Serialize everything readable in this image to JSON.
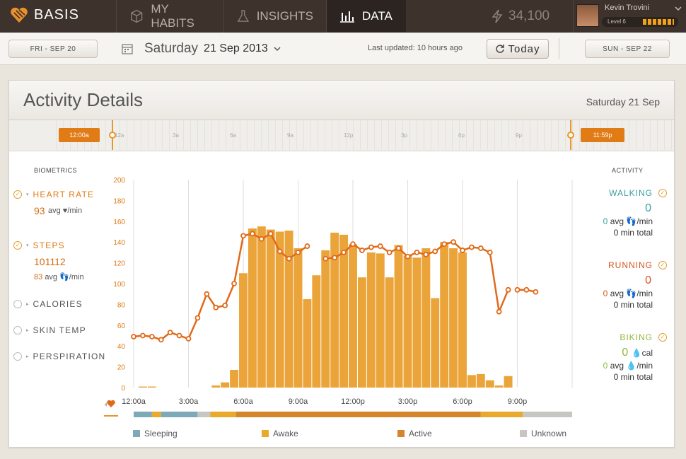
{
  "nav": {
    "brand": "BASIS",
    "tabs": [
      {
        "label": "MY HABITS",
        "icon": "cube-icon"
      },
      {
        "label": "INSIGHTS",
        "icon": "flask-icon"
      },
      {
        "label": "DATA",
        "icon": "bar-chart-icon",
        "active": true
      }
    ],
    "points": "34,100",
    "user_name": "Kevin Trovini",
    "level": "Level 6"
  },
  "subbar": {
    "prev_label": "FRI - SEP 20",
    "day_name": "Saturday",
    "date": "21 Sep 2013",
    "last_updated": "Last updated: 10 hours ago",
    "today_label": "Today",
    "next_label": "SUN - SEP 22"
  },
  "card": {
    "title": "Activity Details",
    "date_label": "Saturday 21 Sep",
    "timeline_start": "12:00a",
    "timeline_end": "11:59p",
    "timeline_ticks": [
      "12a",
      "3a",
      "6a",
      "9a",
      "12p",
      "3p",
      "6p",
      "9p"
    ]
  },
  "biometrics": {
    "heading": "BIOMETRICS",
    "heart_rate": {
      "label": "HEART RATE",
      "value": "93",
      "unit": "avg ♥/min"
    },
    "steps": {
      "label": "STEPS",
      "value": "101112",
      "avg_value": "83",
      "unit": "avg 👣/min"
    },
    "others": [
      "CALORIES",
      "SKIN TEMP",
      "PERSPIRATION"
    ]
  },
  "activity": {
    "heading": "ACTIVITY",
    "walking": {
      "label": "WALKING",
      "value": "0",
      "avg": "0",
      "avg_unit": "avg 👣/min",
      "total": "0 min total",
      "color": "#3a9ea3"
    },
    "running": {
      "label": "RUNNING",
      "value": "0",
      "avg": "0",
      "avg_unit": "avg 👣/min",
      "total": "0 min total",
      "color": "#d4551c"
    },
    "biking": {
      "label": "BIKING",
      "value": "0",
      "value_unit": "💧cal",
      "avg": "0",
      "avg_unit": "avg 💧/min",
      "total": "0 min total",
      "color": "#8fb83a"
    }
  },
  "legend": {
    "sleeping": {
      "label": "Sleeping",
      "color": "#7ea9b8"
    },
    "awake": {
      "label": "Awake",
      "color": "#e8a92c"
    },
    "active": {
      "label": "Active",
      "color": "#d4862c"
    },
    "unknown": {
      "label": "Unknown",
      "color": "#c8c6c2"
    }
  },
  "chart_data": {
    "type": "bar",
    "ylim": [
      0,
      200
    ],
    "yticks": [
      0,
      20,
      40,
      60,
      80,
      100,
      120,
      140,
      160,
      180,
      200
    ],
    "xtick_labels": [
      "12:00a",
      "3:00a",
      "6:00a",
      "9:00a",
      "12:00p",
      "3:00p",
      "6:00p",
      "9:00p"
    ],
    "xlim_hours": [
      0,
      24
    ],
    "series": [
      {
        "kind": "bar",
        "color": "#eaa43a",
        "hours": [
          0.5,
          1.0,
          4.5,
          5.0,
          5.5,
          6.0,
          6.5,
          7.0,
          7.5,
          8.0,
          8.5,
          9.0,
          9.5,
          10.0,
          10.5,
          11.0,
          11.5,
          12.0,
          12.5,
          13.0,
          13.5,
          14.0,
          14.5,
          15.0,
          15.5,
          16.0,
          16.5,
          17.0,
          17.5,
          18.0,
          18.5,
          19.0,
          19.5,
          20.0,
          20.5,
          21.0
        ],
        "values": [
          1,
          1,
          2,
          5,
          17,
          110,
          153,
          155,
          152,
          150,
          151,
          134,
          85,
          108,
          132,
          149,
          147,
          138,
          106,
          130,
          129,
          106,
          137,
          127,
          125,
          134,
          86,
          140,
          134,
          130,
          12,
          13,
          7,
          2,
          11,
          0
        ]
      },
      {
        "kind": "line",
        "color": "#e06a1a",
        "segments": [
          {
            "hours": [
              0,
              0.5,
              1.0,
              1.5,
              2.0,
              2.5,
              3.0,
              3.5,
              4.0,
              4.5,
              5.0,
              5.5,
              6.0,
              6.5,
              7.0,
              7.5,
              8.0,
              8.5,
              9.0,
              9.5
            ],
            "values": [
              49,
              50,
              49,
              46,
              53,
              50,
              47,
              67,
              90,
              77,
              79,
              100,
              146,
              148,
              143,
              148,
              131,
              124,
              130,
              136
            ]
          },
          {
            "hours": [
              10.5,
              11.0,
              11.5,
              12.0,
              12.5,
              13.0,
              13.5,
              14.0,
              14.5,
              15.0,
              15.5,
              16.0,
              16.5,
              17.0,
              17.5,
              18.0,
              18.5,
              19.0,
              19.5,
              20.0,
              20.5
            ],
            "values": [
              124,
              125,
              130,
              138,
              132,
              135,
              136,
              130,
              134,
              126,
              130,
              128,
              131,
              138,
              140,
              132,
              135,
              134,
              130,
              73,
              94
            ]
          },
          {
            "hours": [
              21.0,
              21.5,
              22.0
            ],
            "values": [
              94,
              94,
              92
            ]
          }
        ]
      }
    ],
    "activity_strip": [
      {
        "from": 0,
        "to": 1,
        "state": "sleeping"
      },
      {
        "from": 1,
        "to": 1.5,
        "state": "awake"
      },
      {
        "from": 1.5,
        "to": 3.5,
        "state": "sleeping"
      },
      {
        "from": 3.5,
        "to": 4.2,
        "state": "unknown"
      },
      {
        "from": 4.2,
        "to": 5.6,
        "state": "awake"
      },
      {
        "from": 5.6,
        "to": 19.0,
        "state": "active"
      },
      {
        "from": 19.0,
        "to": 21.3,
        "state": "awake"
      },
      {
        "from": 21.3,
        "to": 24,
        "state": "unknown"
      }
    ]
  }
}
